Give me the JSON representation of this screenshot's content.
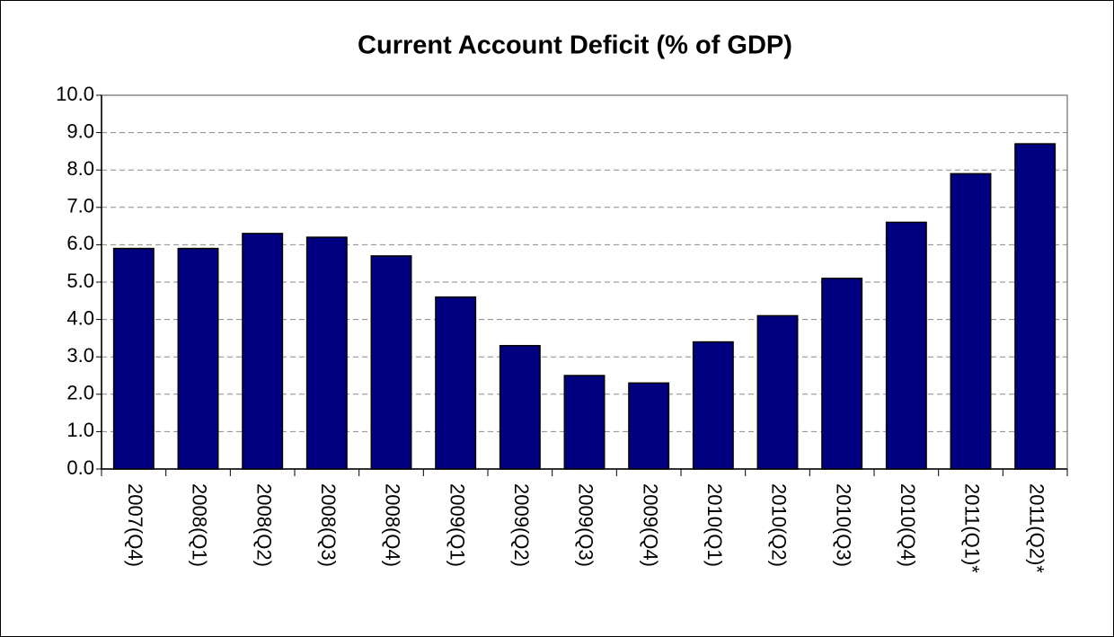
{
  "chart_data": {
    "type": "bar",
    "title": "Current Account Deficit (% of GDP)",
    "categories": [
      "2007(Q4)",
      "2008(Q1)",
      "2008(Q2)",
      "2008(Q3)",
      "2008(Q4)",
      "2009(Q1)",
      "2009(Q2)",
      "2009(Q3)",
      "2009(Q4)",
      "2010(Q1)",
      "2010(Q2)",
      "2010(Q3)",
      "2010(Q4)",
      "2011(Q1)*",
      "2011(Q2)*"
    ],
    "values": [
      5.9,
      5.9,
      6.3,
      6.2,
      5.7,
      4.6,
      3.3,
      2.5,
      2.3,
      3.4,
      4.1,
      5.1,
      6.6,
      7.9,
      8.7
    ],
    "color": "#000080",
    "ylim": [
      0,
      10
    ],
    "yticks": [
      {
        "value": 0,
        "label": "0.0"
      },
      {
        "value": 1,
        "label": "1.0"
      },
      {
        "value": 2,
        "label": "2.0"
      },
      {
        "value": 3,
        "label": "3.0"
      },
      {
        "value": 4,
        "label": "4.0"
      },
      {
        "value": 5,
        "label": "5.0"
      },
      {
        "value": 6,
        "label": "6.0"
      },
      {
        "value": 7,
        "label": "7.0"
      },
      {
        "value": 8,
        "label": "8.0"
      },
      {
        "value": 9,
        "label": "9.0"
      },
      {
        "value": 10,
        "label": "10.0"
      }
    ],
    "grid": true
  }
}
